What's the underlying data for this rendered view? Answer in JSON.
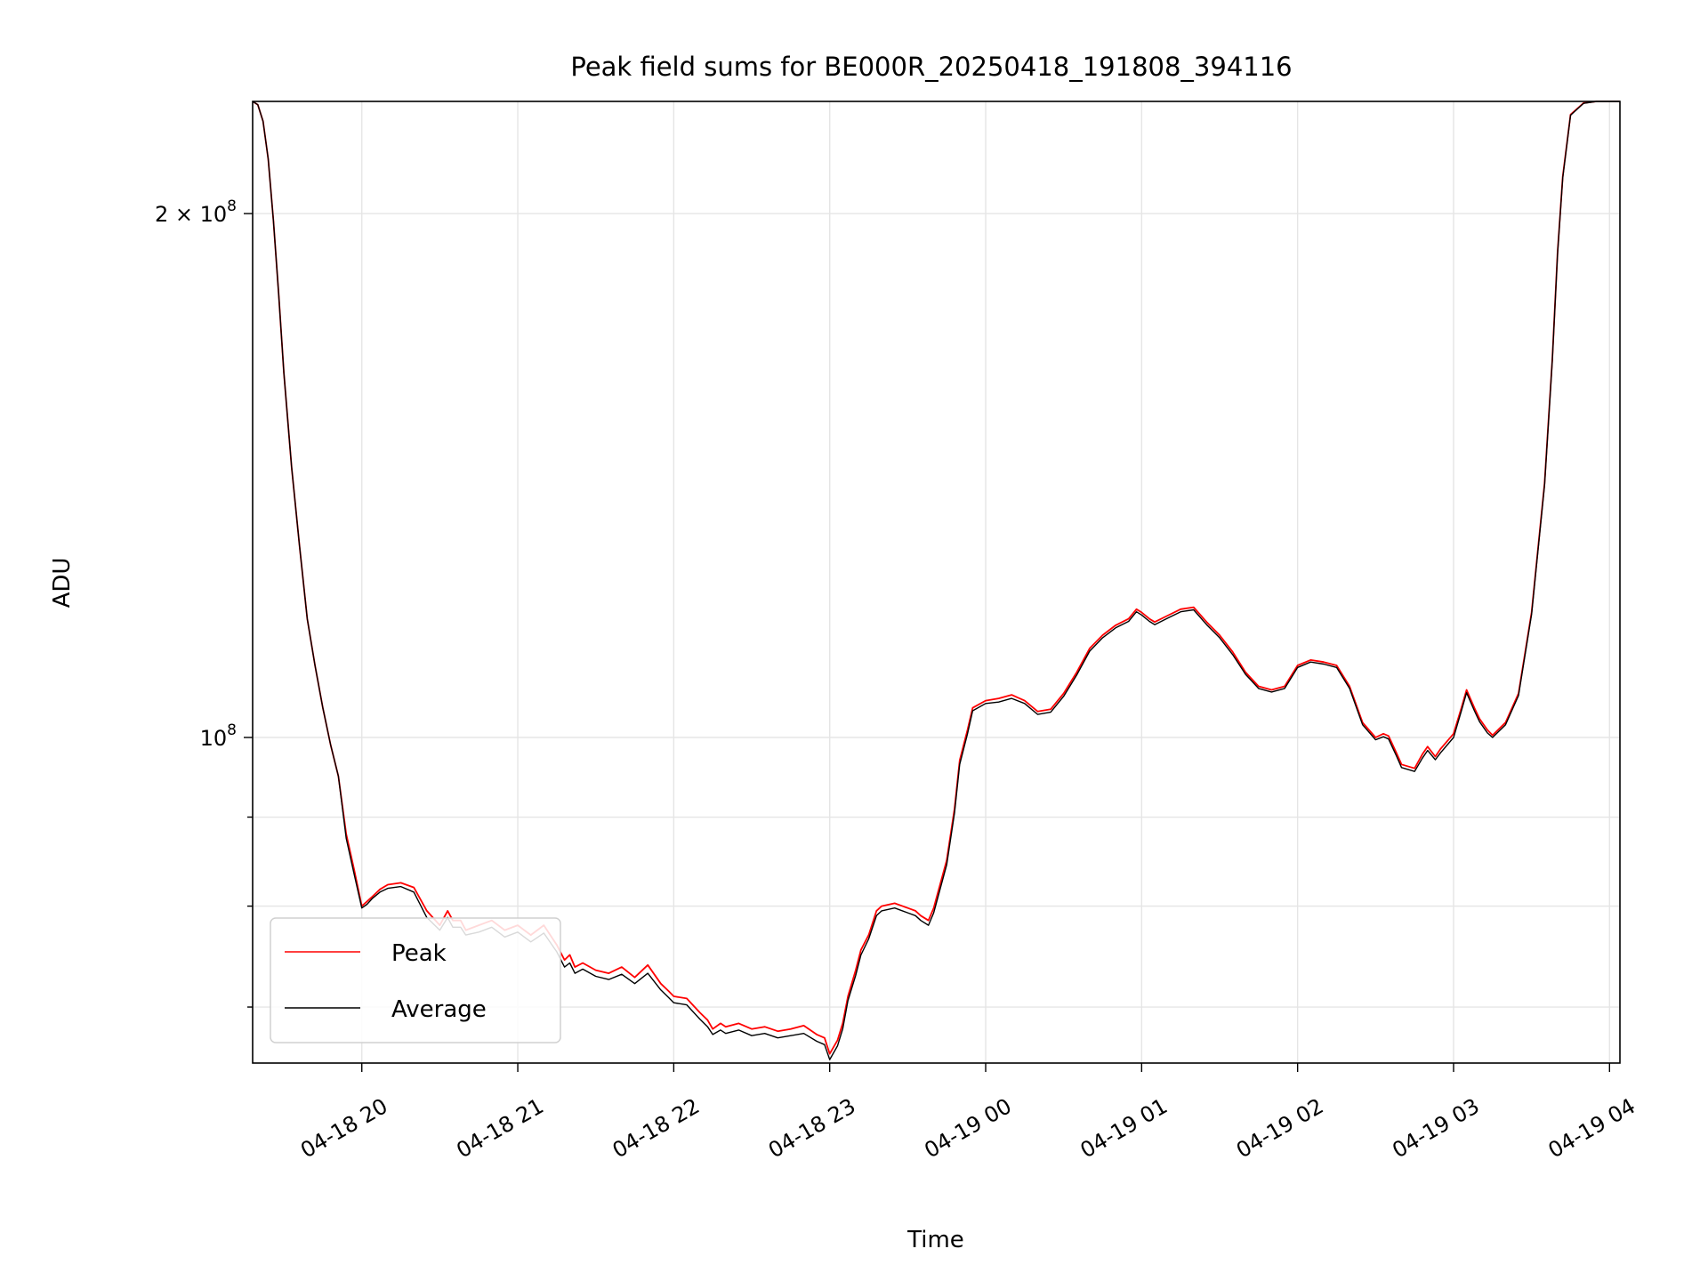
{
  "chart_data": {
    "type": "line",
    "title": "Peak field sums for BE000R_20250418_191808_394116",
    "xlabel": "Time",
    "ylabel": "ADU",
    "y_scale": "log",
    "ylim": [
      65000000,
      232000000
    ],
    "xlim": [
      "04-18 19:18",
      "04-19 04:04"
    ],
    "grid": true,
    "legend_position": "lower-left",
    "x_ticks": [
      {
        "t": "04-18 20:00",
        "label": "04-18 20"
      },
      {
        "t": "04-18 21:00",
        "label": "04-18 21"
      },
      {
        "t": "04-18 22:00",
        "label": "04-18 22"
      },
      {
        "t": "04-18 23:00",
        "label": "04-18 23"
      },
      {
        "t": "04-19 00:00",
        "label": "04-19 00"
      },
      {
        "t": "04-19 01:00",
        "label": "04-19 01"
      },
      {
        "t": "04-19 02:00",
        "label": "04-19 02"
      },
      {
        "t": "04-19 03:00",
        "label": "04-19 03"
      },
      {
        "t": "04-19 04:00",
        "label": "04-19 04"
      }
    ],
    "y_ticks_major": [
      {
        "value": 100000000,
        "base": "10",
        "exp": "8",
        "coef": ""
      },
      {
        "value": 200000000,
        "base": "10",
        "exp": "8",
        "coef": "2 × "
      }
    ],
    "y_ticks_minor": [
      70000000,
      80000000,
      90000000
    ],
    "series": [
      {
        "name": "Peak",
        "color": "#ff0000",
        "x": [
          "04-18 19:18",
          "04-18 19:20",
          "04-18 19:22",
          "04-18 19:24",
          "04-18 19:26",
          "04-18 19:28",
          "04-18 19:30",
          "04-18 19:33",
          "04-18 19:36",
          "04-18 19:39",
          "04-18 19:42",
          "04-18 19:45",
          "04-18 19:48",
          "04-18 19:51",
          "04-18 19:54",
          "04-18 19:57",
          "04-18 20:00",
          "04-18 20:02",
          "04-18 20:04",
          "04-18 20:07",
          "04-18 20:10",
          "04-18 20:15",
          "04-18 20:20",
          "04-18 20:25",
          "04-18 20:30",
          "04-18 20:33",
          "04-18 20:35",
          "04-18 20:38",
          "04-18 20:40",
          "04-18 20:45",
          "04-18 20:50",
          "04-18 20:55",
          "04-18 21:00",
          "04-18 21:05",
          "04-18 21:10",
          "04-18 21:15",
          "04-18 21:18",
          "04-18 21:20",
          "04-18 21:22",
          "04-18 21:25",
          "04-18 21:30",
          "04-18 21:35",
          "04-18 21:40",
          "04-18 21:45",
          "04-18 21:50",
          "04-18 21:55",
          "04-18 21:58",
          "04-18 22:00",
          "04-18 22:05",
          "04-18 22:10",
          "04-18 22:13",
          "04-18 22:15",
          "04-18 22:18",
          "04-18 22:20",
          "04-18 22:25",
          "04-18 22:30",
          "04-18 22:35",
          "04-18 22:40",
          "04-18 22:45",
          "04-18 22:50",
          "04-18 22:55",
          "04-18 22:58",
          "04-18 23:00",
          "04-18 23:03",
          "04-18 23:05",
          "04-18 23:07",
          "04-18 23:10",
          "04-18 23:12",
          "04-18 23:15",
          "04-18 23:18",
          "04-18 23:20",
          "04-18 23:25",
          "04-18 23:30",
          "04-18 23:33",
          "04-18 23:35",
          "04-18 23:38",
          "04-18 23:40",
          "04-18 23:45",
          "04-18 23:48",
          "04-18 23:50",
          "04-18 23:53",
          "04-18 23:55",
          "04-19 00:00",
          "04-19 00:05",
          "04-19 00:10",
          "04-19 00:15",
          "04-19 00:20",
          "04-19 00:25",
          "04-19 00:30",
          "04-19 00:35",
          "04-19 00:40",
          "04-19 00:45",
          "04-19 00:50",
          "04-19 00:55",
          "04-19 00:58",
          "04-19 01:00",
          "04-19 01:03",
          "04-19 01:05",
          "04-19 01:10",
          "04-19 01:15",
          "04-19 01:20",
          "04-19 01:25",
          "04-19 01:30",
          "04-19 01:35",
          "04-19 01:40",
          "04-19 01:45",
          "04-19 01:50",
          "04-19 01:55",
          "04-19 02:00",
          "04-19 02:05",
          "04-19 02:10",
          "04-19 02:15",
          "04-19 02:20",
          "04-19 02:25",
          "04-19 02:30",
          "04-19 02:33",
          "04-19 02:35",
          "04-19 02:38",
          "04-19 02:40",
          "04-19 02:45",
          "04-19 02:48",
          "04-19 02:50",
          "04-19 02:53",
          "04-19 02:55",
          "04-19 03:00",
          "04-19 03:03",
          "04-19 03:05",
          "04-19 03:08",
          "04-19 03:10",
          "04-19 03:13",
          "04-19 03:15",
          "04-19 03:20",
          "04-19 03:25",
          "04-19 03:30",
          "04-19 03:35",
          "04-19 03:38",
          "04-19 03:40",
          "04-19 03:42",
          "04-19 03:45",
          "04-19 03:50",
          "04-19 03:55",
          "04-19 04:00",
          "04-19 04:04"
        ],
        "y": [
          232000000,
          231000000,
          226000000,
          215000000,
          198000000,
          180000000,
          162000000,
          143000000,
          129000000,
          117000000,
          110000000,
          104000000,
          99000000,
          95000000,
          88000000,
          84000000,
          80000000,
          80500000,
          81000000,
          81800000,
          82300000,
          82500000,
          82000000,
          79500000,
          78000000,
          79500000,
          78500000,
          78500000,
          77500000,
          78000000,
          78500000,
          77500000,
          78000000,
          77000000,
          78000000,
          76000000,
          74500000,
          75000000,
          73800000,
          74200000,
          73500000,
          73200000,
          73800000,
          72800000,
          74000000,
          72200000,
          71500000,
          71000000,
          70800000,
          69500000,
          68800000,
          68000000,
          68500000,
          68200000,
          68500000,
          68000000,
          68200000,
          67800000,
          68000000,
          68300000,
          67500000,
          67200000,
          65800000,
          67000000,
          68500000,
          71000000,
          73500000,
          75500000,
          77000000,
          79500000,
          80000000,
          80300000,
          79800000,
          79500000,
          79000000,
          78500000,
          79800000,
          85000000,
          91000000,
          97000000,
          101000000,
          104000000,
          105000000,
          105300000,
          105800000,
          105000000,
          103500000,
          103800000,
          106000000,
          109000000,
          112500000,
          114500000,
          116000000,
          117000000,
          118500000,
          118000000,
          117000000,
          116500000,
          117500000,
          118500000,
          118800000,
          116500000,
          114500000,
          112000000,
          109000000,
          107000000,
          106500000,
          107000000,
          110000000,
          110800000,
          110500000,
          110000000,
          107000000,
          102000000,
          100000000,
          100500000,
          100200000,
          98000000,
          96500000,
          96000000,
          97800000,
          98800000,
          97500000,
          98500000,
          100500000,
          104000000,
          106500000,
          104000000,
          102500000,
          101000000,
          100300000,
          102000000,
          106000000,
          118000000,
          140000000,
          165000000,
          190000000,
          210000000,
          228000000,
          231500000,
          232000000,
          232000000,
          232000000
        ]
      },
      {
        "name": "Average",
        "color": "#000000",
        "x": [
          "04-18 19:18",
          "04-18 19:20",
          "04-18 19:22",
          "04-18 19:24",
          "04-18 19:26",
          "04-18 19:28",
          "04-18 19:30",
          "04-18 19:33",
          "04-18 19:36",
          "04-18 19:39",
          "04-18 19:42",
          "04-18 19:45",
          "04-18 19:48",
          "04-18 19:51",
          "04-18 19:54",
          "04-18 19:57",
          "04-18 20:00",
          "04-18 20:02",
          "04-18 20:04",
          "04-18 20:07",
          "04-18 20:10",
          "04-18 20:15",
          "04-18 20:20",
          "04-18 20:25",
          "04-18 20:30",
          "04-18 20:33",
          "04-18 20:35",
          "04-18 20:38",
          "04-18 20:40",
          "04-18 20:45",
          "04-18 20:50",
          "04-18 20:55",
          "04-18 21:00",
          "04-18 21:05",
          "04-18 21:10",
          "04-18 21:15",
          "04-18 21:18",
          "04-18 21:20",
          "04-18 21:22",
          "04-18 21:25",
          "04-18 21:30",
          "04-18 21:35",
          "04-18 21:40",
          "04-18 21:45",
          "04-18 21:50",
          "04-18 21:55",
          "04-18 21:58",
          "04-18 22:00",
          "04-18 22:05",
          "04-18 22:10",
          "04-18 22:13",
          "04-18 22:15",
          "04-18 22:18",
          "04-18 22:20",
          "04-18 22:25",
          "04-18 22:30",
          "04-18 22:35",
          "04-18 22:40",
          "04-18 22:45",
          "04-18 22:50",
          "04-18 22:55",
          "04-18 22:58",
          "04-18 23:00",
          "04-18 23:03",
          "04-18 23:05",
          "04-18 23:07",
          "04-18 23:10",
          "04-18 23:12",
          "04-18 23:15",
          "04-18 23:18",
          "04-18 23:20",
          "04-18 23:25",
          "04-18 23:30",
          "04-18 23:33",
          "04-18 23:35",
          "04-18 23:38",
          "04-18 23:40",
          "04-18 23:45",
          "04-18 23:48",
          "04-18 23:50",
          "04-18 23:53",
          "04-18 23:55",
          "04-19 00:00",
          "04-19 00:05",
          "04-19 00:10",
          "04-19 00:15",
          "04-19 00:20",
          "04-19 00:25",
          "04-19 00:30",
          "04-19 00:35",
          "04-19 00:40",
          "04-19 00:45",
          "04-19 00:50",
          "04-19 00:55",
          "04-19 00:58",
          "04-19 01:00",
          "04-19 01:03",
          "04-19 01:05",
          "04-19 01:10",
          "04-19 01:15",
          "04-19 01:20",
          "04-19 01:25",
          "04-19 01:30",
          "04-19 01:35",
          "04-19 01:40",
          "04-19 01:45",
          "04-19 01:50",
          "04-19 01:55",
          "04-19 02:00",
          "04-19 02:05",
          "04-19 02:10",
          "04-19 02:15",
          "04-19 02:20",
          "04-19 02:25",
          "04-19 02:30",
          "04-19 02:33",
          "04-19 02:35",
          "04-19 02:38",
          "04-19 02:40",
          "04-19 02:45",
          "04-19 02:48",
          "04-19 02:50",
          "04-19 02:53",
          "04-19 02:55",
          "04-19 03:00",
          "04-19 03:03",
          "04-19 03:05",
          "04-19 03:08",
          "04-19 03:10",
          "04-19 03:13",
          "04-19 03:15",
          "04-19 03:20",
          "04-19 03:25",
          "04-19 03:30",
          "04-19 03:35",
          "04-19 03:38",
          "04-19 03:40",
          "04-19 03:42",
          "04-19 03:45",
          "04-19 03:50",
          "04-19 03:55",
          "04-19 04:00",
          "04-19 04:04"
        ],
        "y": [
          232000000,
          231000000,
          226000000,
          215000000,
          198000000,
          180000000,
          162000000,
          143000000,
          129000000,
          117000000,
          110000000,
          104000000,
          99000000,
          95000000,
          87500000,
          83500000,
          79800000,
          80200000,
          80800000,
          81500000,
          81900000,
          82100000,
          81500000,
          78800000,
          77500000,
          78800000,
          77800000,
          77800000,
          77000000,
          77300000,
          77800000,
          76800000,
          77300000,
          76300000,
          77200000,
          75300000,
          73800000,
          74200000,
          73200000,
          73600000,
          72900000,
          72600000,
          73100000,
          72200000,
          73200000,
          71600000,
          70900000,
          70400000,
          70200000,
          68900000,
          68200000,
          67500000,
          67900000,
          67600000,
          67900000,
          67400000,
          67600000,
          67200000,
          67400000,
          67600000,
          66900000,
          66600000,
          65300000,
          66500000,
          68000000,
          70600000,
          73000000,
          75000000,
          76600000,
          79000000,
          79500000,
          79800000,
          79300000,
          79000000,
          78500000,
          78000000,
          79300000,
          84500000,
          90500000,
          96500000,
          100500000,
          103600000,
          104600000,
          104800000,
          105300000,
          104600000,
          103100000,
          103400000,
          105600000,
          108600000,
          112100000,
          114100000,
          115600000,
          116600000,
          118100000,
          117600000,
          116600000,
          116100000,
          117100000,
          118100000,
          118400000,
          116100000,
          114100000,
          111600000,
          108700000,
          106700000,
          106200000,
          106700000,
          109700000,
          110500000,
          110200000,
          109700000,
          106700000,
          101700000,
          99700000,
          100100000,
          99800000,
          97600000,
          96100000,
          95600000,
          97300000,
          98300000,
          97100000,
          98000000,
          100000000,
          103600000,
          106100000,
          103600000,
          102100000,
          100600000,
          100000000,
          101700000,
          105700000,
          117700000,
          139700000,
          164700000,
          189700000,
          209700000,
          227800000,
          231400000,
          232000000,
          232000000,
          232000000
        ]
      }
    ]
  }
}
